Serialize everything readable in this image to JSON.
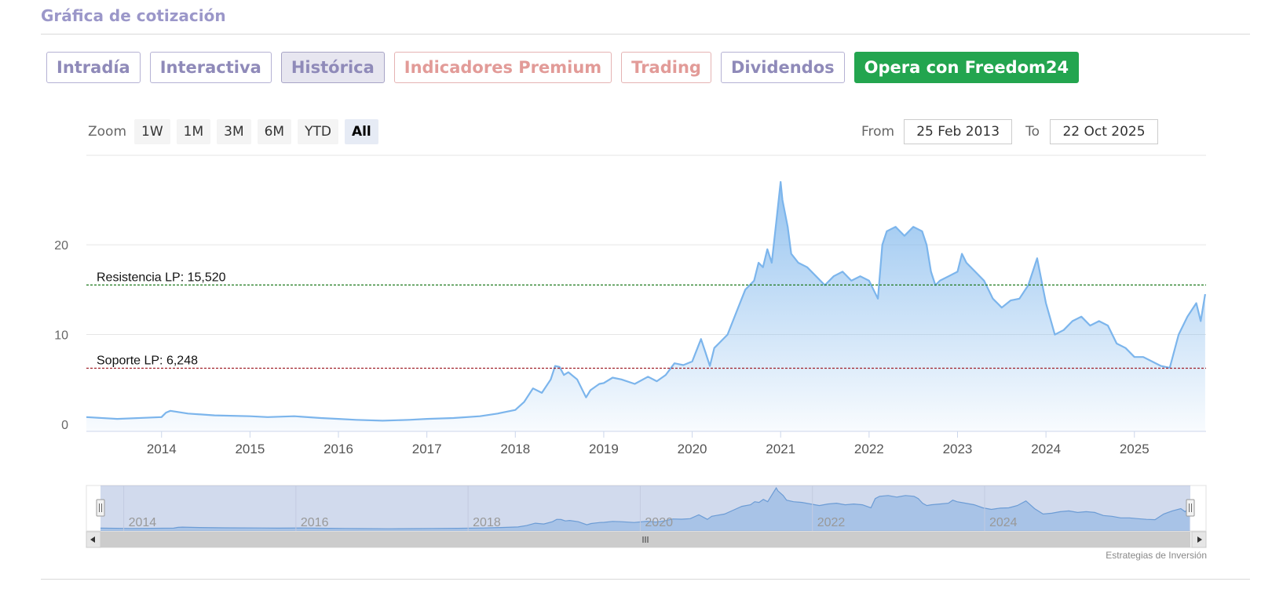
{
  "header": {
    "title": "Gráfica de cotización"
  },
  "tabs": [
    {
      "label": "Intradía",
      "style": "normal"
    },
    {
      "label": "Interactiva",
      "style": "normal"
    },
    {
      "label": "Histórica",
      "style": "active"
    },
    {
      "label": "Indicadores Premium",
      "style": "premium"
    },
    {
      "label": "Trading",
      "style": "premium"
    },
    {
      "label": "Dividendos",
      "style": "normal"
    },
    {
      "label": "Opera con Freedom24",
      "style": "cta"
    }
  ],
  "zoom": {
    "label": "Zoom",
    "buttons": [
      "1W",
      "1M",
      "3M",
      "6M",
      "YTD",
      "All"
    ],
    "selected": "All"
  },
  "range": {
    "from_label": "From",
    "from_value": "25 Feb 2013",
    "to_label": "To",
    "to_value": "22 Oct 2025"
  },
  "credit": "Estrategias de Inversión",
  "colors": {
    "line": "#7cb5ec",
    "resistance": "#1e7a1e",
    "support": "#a1202a",
    "cta": "#23a54f"
  },
  "chart_data": {
    "type": "area",
    "title": "",
    "xlabel": "",
    "ylabel": "",
    "ylim": [
      0,
      27
    ],
    "y_ticks": [
      0,
      10,
      20
    ],
    "x_ticks": [
      "2014",
      "2015",
      "2016",
      "2017",
      "2018",
      "2019",
      "2020",
      "2021",
      "2022",
      "2023",
      "2024",
      "2025"
    ],
    "navigator_ticks": [
      "2014",
      "2016",
      "2018",
      "2020",
      "2022",
      "2024"
    ],
    "grid": true,
    "series": [
      {
        "x": [
          2013.15,
          2013.5,
          2014.0,
          2014.05,
          2014.1,
          2014.3,
          2014.6,
          2015.0,
          2015.2,
          2015.5,
          2015.8,
          2016.0,
          2016.2,
          2016.5,
          2016.8,
          2017.0,
          2017.3,
          2017.6,
          2017.8,
          2018.0,
          2018.1,
          2018.2,
          2018.3,
          2018.4,
          2018.45,
          2018.5,
          2018.55,
          2018.6,
          2018.7,
          2018.8,
          2018.85,
          2018.95,
          2019.0,
          2019.1,
          2019.2,
          2019.35,
          2019.5,
          2019.6,
          2019.7,
          2019.8,
          2019.9,
          2020.0,
          2020.1,
          2020.15,
          2020.2,
          2020.25,
          2020.3,
          2020.4,
          2020.5,
          2020.6,
          2020.7,
          2020.75,
          2020.8,
          2020.85,
          2020.9,
          2020.95,
          2021.0,
          2021.02,
          2021.08,
          2021.12,
          2021.2,
          2021.3,
          2021.4,
          2021.5,
          2021.6,
          2021.7,
          2021.8,
          2021.9,
          2022.0,
          2022.1,
          2022.15,
          2022.2,
          2022.3,
          2022.4,
          2022.5,
          2022.6,
          2022.65,
          2022.7,
          2022.75,
          2022.8,
          2022.9,
          2023.0,
          2023.05,
          2023.1,
          2023.2,
          2023.3,
          2023.4,
          2023.5,
          2023.6,
          2023.7,
          2023.8,
          2023.9,
          2023.95,
          2024.0,
          2024.1,
          2024.2,
          2024.3,
          2024.4,
          2024.5,
          2024.6,
          2024.7,
          2024.8,
          2024.9,
          2025.0,
          2025.1,
          2025.2,
          2025.3,
          2025.4,
          2025.5,
          2025.6,
          2025.7,
          2025.75,
          2025.8
        ],
        "y": [
          0.8,
          0.6,
          0.8,
          1.3,
          1.5,
          1.2,
          1.0,
          0.9,
          0.8,
          0.9,
          0.7,
          0.6,
          0.5,
          0.4,
          0.5,
          0.6,
          0.7,
          0.9,
          1.2,
          1.6,
          2.5,
          4.0,
          3.5,
          5.0,
          6.5,
          6.4,
          5.5,
          5.8,
          5.0,
          3.0,
          3.8,
          4.5,
          4.6,
          5.2,
          5.0,
          4.5,
          5.3,
          4.8,
          5.5,
          6.8,
          6.6,
          7.0,
          9.5,
          8.0,
          6.5,
          8.5,
          9.0,
          10.0,
          12.5,
          15.0,
          16.0,
          18.0,
          17.5,
          19.5,
          18.0,
          22.5,
          27.0,
          25.0,
          22.0,
          19.0,
          18.0,
          17.5,
          16.5,
          15.5,
          16.5,
          17.0,
          16.0,
          16.5,
          16.0,
          14.0,
          20.0,
          21.5,
          22.0,
          21.0,
          22.0,
          21.5,
          20.0,
          17.0,
          15.5,
          16.0,
          16.5,
          17.0,
          19.0,
          18.0,
          17.0,
          16.0,
          14.0,
          13.0,
          13.8,
          14.0,
          15.5,
          18.5,
          16.0,
          13.5,
          10.0,
          10.5,
          11.5,
          12.0,
          11.0,
          11.5,
          11.0,
          9.0,
          8.5,
          7.5,
          7.5,
          7.0,
          6.5,
          6.3,
          10.0,
          12.0,
          13.5,
          11.5,
          14.5
        ]
      }
    ],
    "annotations": [
      {
        "label": "Resistencia LP: 15,520",
        "value": 15.52,
        "style": "resistance"
      },
      {
        "label": "Soporte LP: 6,248",
        "value": 6.248,
        "style": "support"
      }
    ]
  }
}
